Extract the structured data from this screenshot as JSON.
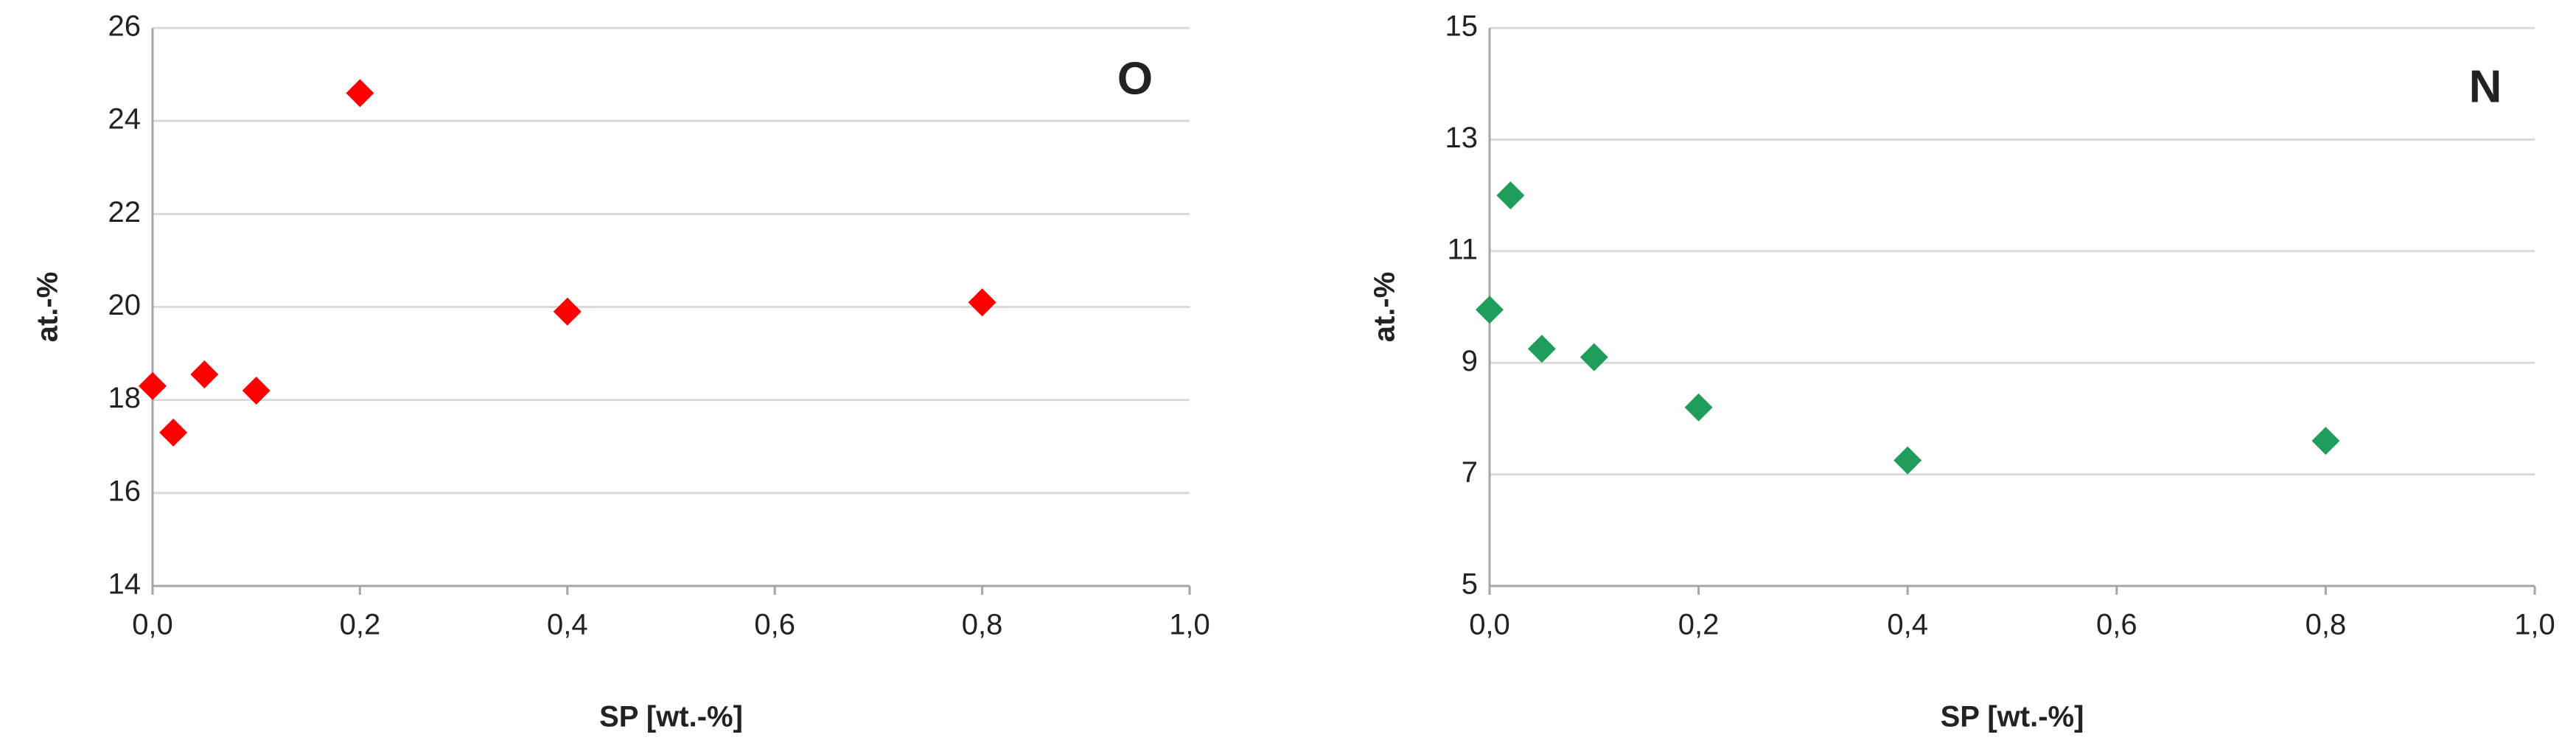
{
  "chart_data": [
    {
      "type": "scatter",
      "annotation": "O",
      "x_label": "SP [wt.-%]",
      "y_label": "at.-%",
      "series": [
        {
          "color": "#ff0000",
          "x": [
            0,
            0.02,
            0.05,
            0.1,
            0.2,
            0.4,
            0.8
          ],
          "values": [
            18.3,
            17.3,
            18.55,
            18.2,
            24.6,
            19.9,
            20.1
          ]
        }
      ],
      "xlim": [
        0,
        1
      ],
      "xticks": [
        {
          "value": 0,
          "label": "0,0"
        },
        {
          "value": 0.2,
          "label": "0,2"
        },
        {
          "value": 0.4,
          "label": "0,4"
        },
        {
          "value": 0.6,
          "label": "0,6"
        },
        {
          "value": 0.8,
          "label": "0,8"
        },
        {
          "value": 1,
          "label": "1,0"
        }
      ],
      "ylim": [
        14,
        26
      ],
      "yticks": [
        14,
        16,
        18,
        20,
        22,
        24,
        26
      ],
      "grid": true
    },
    {
      "type": "scatter",
      "annotation": "N",
      "x_label": "SP [wt.-%]",
      "y_label": "at.-%",
      "series": [
        {
          "color": "#1e9e5a",
          "x": [
            0,
            0.02,
            0.05,
            0.1,
            0.2,
            0.4,
            0.8
          ],
          "values": [
            9.95,
            12.0,
            9.25,
            9.1,
            8.2,
            7.25,
            7.6
          ]
        }
      ],
      "xlim": [
        0,
        1
      ],
      "xticks": [
        {
          "value": 0,
          "label": "0,0"
        },
        {
          "value": 0.2,
          "label": "0,2"
        },
        {
          "value": 0.4,
          "label": "0,4"
        },
        {
          "value": 0.6,
          "label": "0,6"
        },
        {
          "value": 0.8,
          "label": "0,8"
        },
        {
          "value": 1,
          "label": "1,0"
        }
      ],
      "ylim": [
        5,
        15
      ],
      "yticks": [
        5,
        7,
        9,
        11,
        13,
        15
      ],
      "grid": true
    }
  ]
}
